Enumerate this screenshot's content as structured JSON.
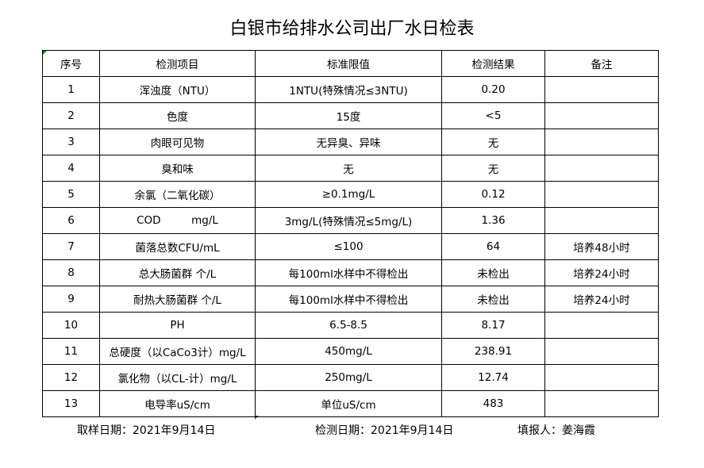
{
  "title": "白银市给排水公司出厂水日检表",
  "headers": [
    "序号",
    "检测项目",
    "标准限值",
    "检测结果",
    "备注"
  ],
  "rows": [
    [
      "1",
      "浑浊度（NTU）",
      "1NTU(特殊情况≤3NTU)",
      "0.20",
      ""
    ],
    [
      "2",
      "色度",
      "15度",
      "<5",
      ""
    ],
    [
      "3",
      "肉眼可见物",
      "无异臭、异味",
      "无",
      ""
    ],
    [
      "4",
      "臭和味",
      "无",
      "无",
      ""
    ],
    [
      "5",
      "余氯（二氧化碳）",
      "≥0.1mg/L",
      "0.12",
      ""
    ],
    [
      "6",
      "COD         mg/L",
      "3mg/L(特殊情况≤5mg/L)",
      "1.36",
      ""
    ],
    [
      "7",
      "菌落总数CFU/mL",
      "≤100",
      "64",
      "培养48小时"
    ],
    [
      "8",
      "总大肠菌群 个/L",
      "每100ml水样中不得检出",
      "未检出",
      "培养24小时"
    ],
    [
      "9",
      "耐热大肠菌群 个/L",
      "每100ml水样中不得检出",
      "未检出",
      "培养24小时"
    ],
    [
      "10",
      "PH",
      "6.5-8.5",
      "8.17",
      ""
    ],
    [
      "11",
      "总硬度（以CaCo3计）mg/L",
      "450mg/L",
      "238.91",
      ""
    ],
    [
      "12",
      "氯化物（以CL-计）mg/L",
      "250mg/L",
      "12.74",
      ""
    ],
    [
      "13",
      "电导率uS/cm",
      "单位uS/cm",
      "483",
      ""
    ]
  ],
  "footer": {
    "sampling_date": "取样日期：2021年9月14日",
    "test_date": "检测日期：2021年9月14日",
    "reporter": "填报人：姜海霞"
  }
}
